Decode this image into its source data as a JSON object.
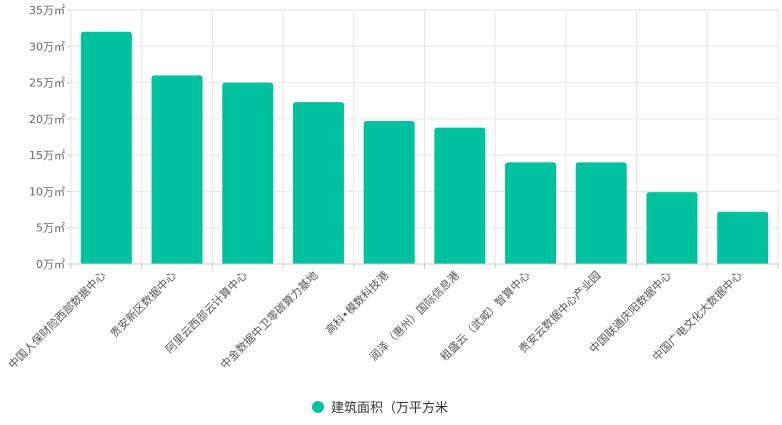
{
  "chart_data": {
    "type": "bar",
    "categories": [
      "中国人保财险西部数据中心",
      "贵安新区数据中心",
      "阿里云西部云计算中心",
      "中金数据中卫零碳算力基地",
      "高科•模数科技港",
      "润泽（惠州）国际信息港",
      "租盛云（武威）智算中心",
      "贵安云数据中心产业园",
      "中国联通庆阳数据中心",
      "中国广电文化大数据中心"
    ],
    "series": [
      {
        "name": "建筑面积（万平方米",
        "values": [
          32,
          26,
          25,
          22.3,
          19.7,
          18.8,
          14,
          14,
          9.9,
          7.2
        ]
      }
    ],
    "ylim": [
      0,
      35
    ],
    "yticks": [
      0,
      5,
      10,
      15,
      20,
      25,
      30,
      35
    ],
    "ytick_labels": [
      "0万㎡",
      "5万㎡",
      "10万㎡",
      "15万㎡",
      "20万㎡",
      "25万㎡",
      "30万㎡",
      "35万㎡"
    ],
    "grid": true,
    "legend": "bottom",
    "colors": {
      "bar": "#00c29e",
      "grid": "#e6e6e6",
      "axis": "#cccccc"
    }
  }
}
